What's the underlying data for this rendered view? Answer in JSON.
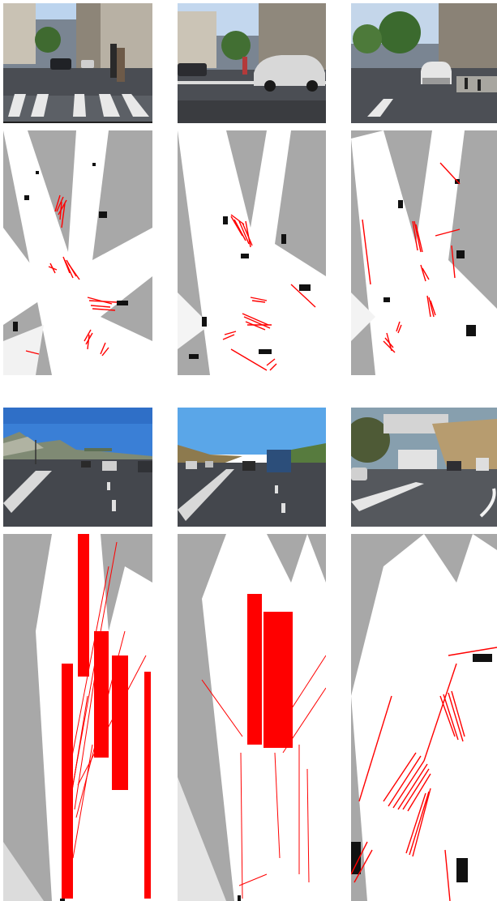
{
  "figure": {
    "background": "#ffffff",
    "palette": {
      "sky": "#8fb8e6",
      "sky_blue": "#3d7fd0",
      "road": "#3b3d42",
      "building": "#a9a39a",
      "map_gray": "#a8a8a8",
      "free_white": "#ffffff",
      "obstacle_black": "#111111",
      "red_rays": "#ff0000"
    },
    "groups": [
      {
        "scenes": [
          {
            "camera": "urban-crosswalk-pedestrian",
            "map": "occupancy-grid-1"
          },
          {
            "camera": "urban-street-car-crossing",
            "map": "occupancy-grid-2"
          },
          {
            "camera": "urban-street-following-car",
            "map": "occupancy-grid-3"
          }
        ]
      },
      {
        "scenes": [
          {
            "camera": "highway-mountains",
            "map": "occupancy-grid-4"
          },
          {
            "camera": "highway-truck",
            "map": "occupancy-grid-5"
          },
          {
            "camera": "suburban-road-truck",
            "map": "occupancy-grid-6"
          }
        ]
      }
    ]
  }
}
